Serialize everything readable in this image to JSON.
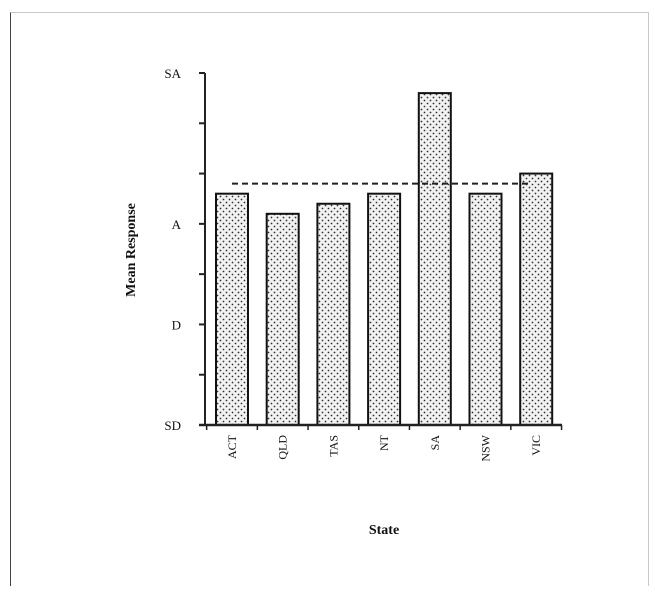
{
  "chart_data": {
    "type": "bar",
    "categories": [
      "ACT",
      "QLD",
      "TAS",
      "NT",
      "SA",
      "NSW",
      "VIC"
    ],
    "values": [
      3.3,
      3.1,
      3.2,
      3.3,
      4.3,
      3.3,
      3.5
    ],
    "reference_line": 3.4,
    "xlabel": "State",
    "ylabel": "Mean Response",
    "ylim": [
      1,
      4.5
    ],
    "y_ticks": [
      {
        "value": 1,
        "label": "SD"
      },
      {
        "value": 1.5,
        "label": ""
      },
      {
        "value": 2,
        "label": "D"
      },
      {
        "value": 2.5,
        "label": ""
      },
      {
        "value": 3,
        "label": "A"
      },
      {
        "value": 3.5,
        "label": ""
      },
      {
        "value": 4,
        "label": ""
      },
      {
        "value": 4.5,
        "label": "SA"
      }
    ],
    "pattern": "dotted",
    "grid": false,
    "legend": "none"
  }
}
